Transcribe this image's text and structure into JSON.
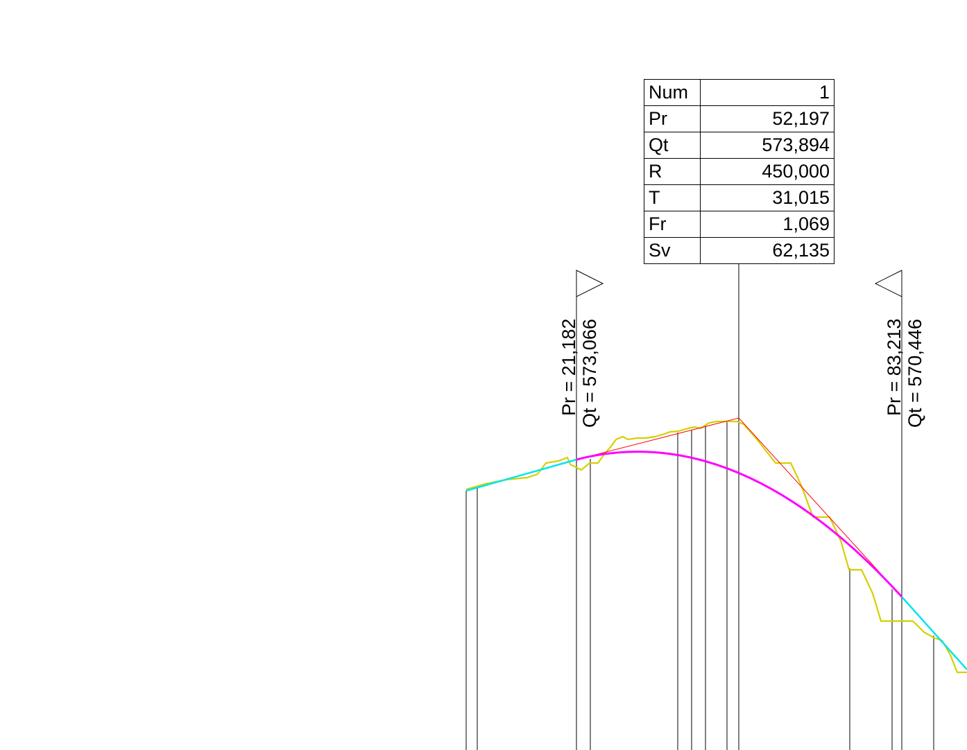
{
  "curve_parameters": {
    "rows": [
      {
        "label": "Num",
        "value": "1"
      },
      {
        "label": "Pr",
        "value": "52,197"
      },
      {
        "label": "Qt",
        "value": "573,894"
      },
      {
        "label": "R",
        "value": "450,000"
      },
      {
        "label": "T",
        "value": "31,015"
      },
      {
        "label": "Fr",
        "value": "1,069"
      },
      {
        "label": "Sv",
        "value": "62,135"
      }
    ]
  },
  "curve_start": {
    "pr": "Pr = 21,182",
    "qt": "Qt = 573,066"
  },
  "curve_end": {
    "pr": "Pr = 83,213",
    "qt": "Qt = 570,446"
  },
  "colors": {
    "terrain": "#d4d000",
    "tangent": "#00e5ee",
    "vertical_curve": "#ff00ff",
    "tangent_lines": "#ff0000",
    "lines": "#000000"
  }
}
